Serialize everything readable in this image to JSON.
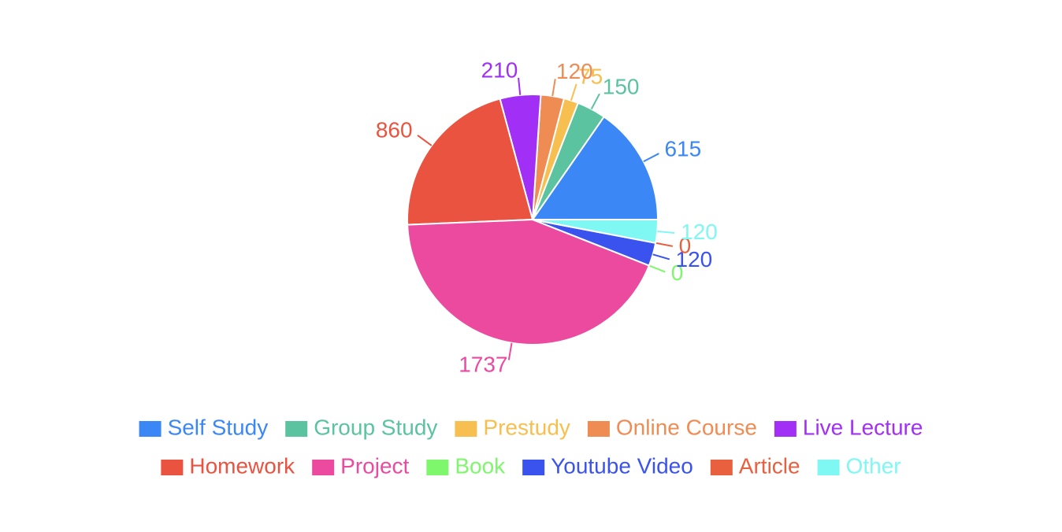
{
  "chart_data": {
    "type": "pie",
    "categories": [
      "Self Study",
      "Group Study",
      "Prestudy",
      "Online Course",
      "Live Lecture",
      "Homework",
      "Project",
      "Book",
      "Youtube Video",
      "Article",
      "Other"
    ],
    "values": [
      615,
      150,
      75,
      120,
      210,
      860,
      1737,
      0,
      120,
      0,
      120
    ],
    "colors": [
      "#3b87f5",
      "#5bc3a0",
      "#f6bf4f",
      "#ef8c54",
      "#a22ff5",
      "#e9533f",
      "#eb4a9f",
      "#7ef76d",
      "#3b53ee",
      "#e9603f",
      "#7ff8f3"
    ],
    "legend": "bottom"
  }
}
